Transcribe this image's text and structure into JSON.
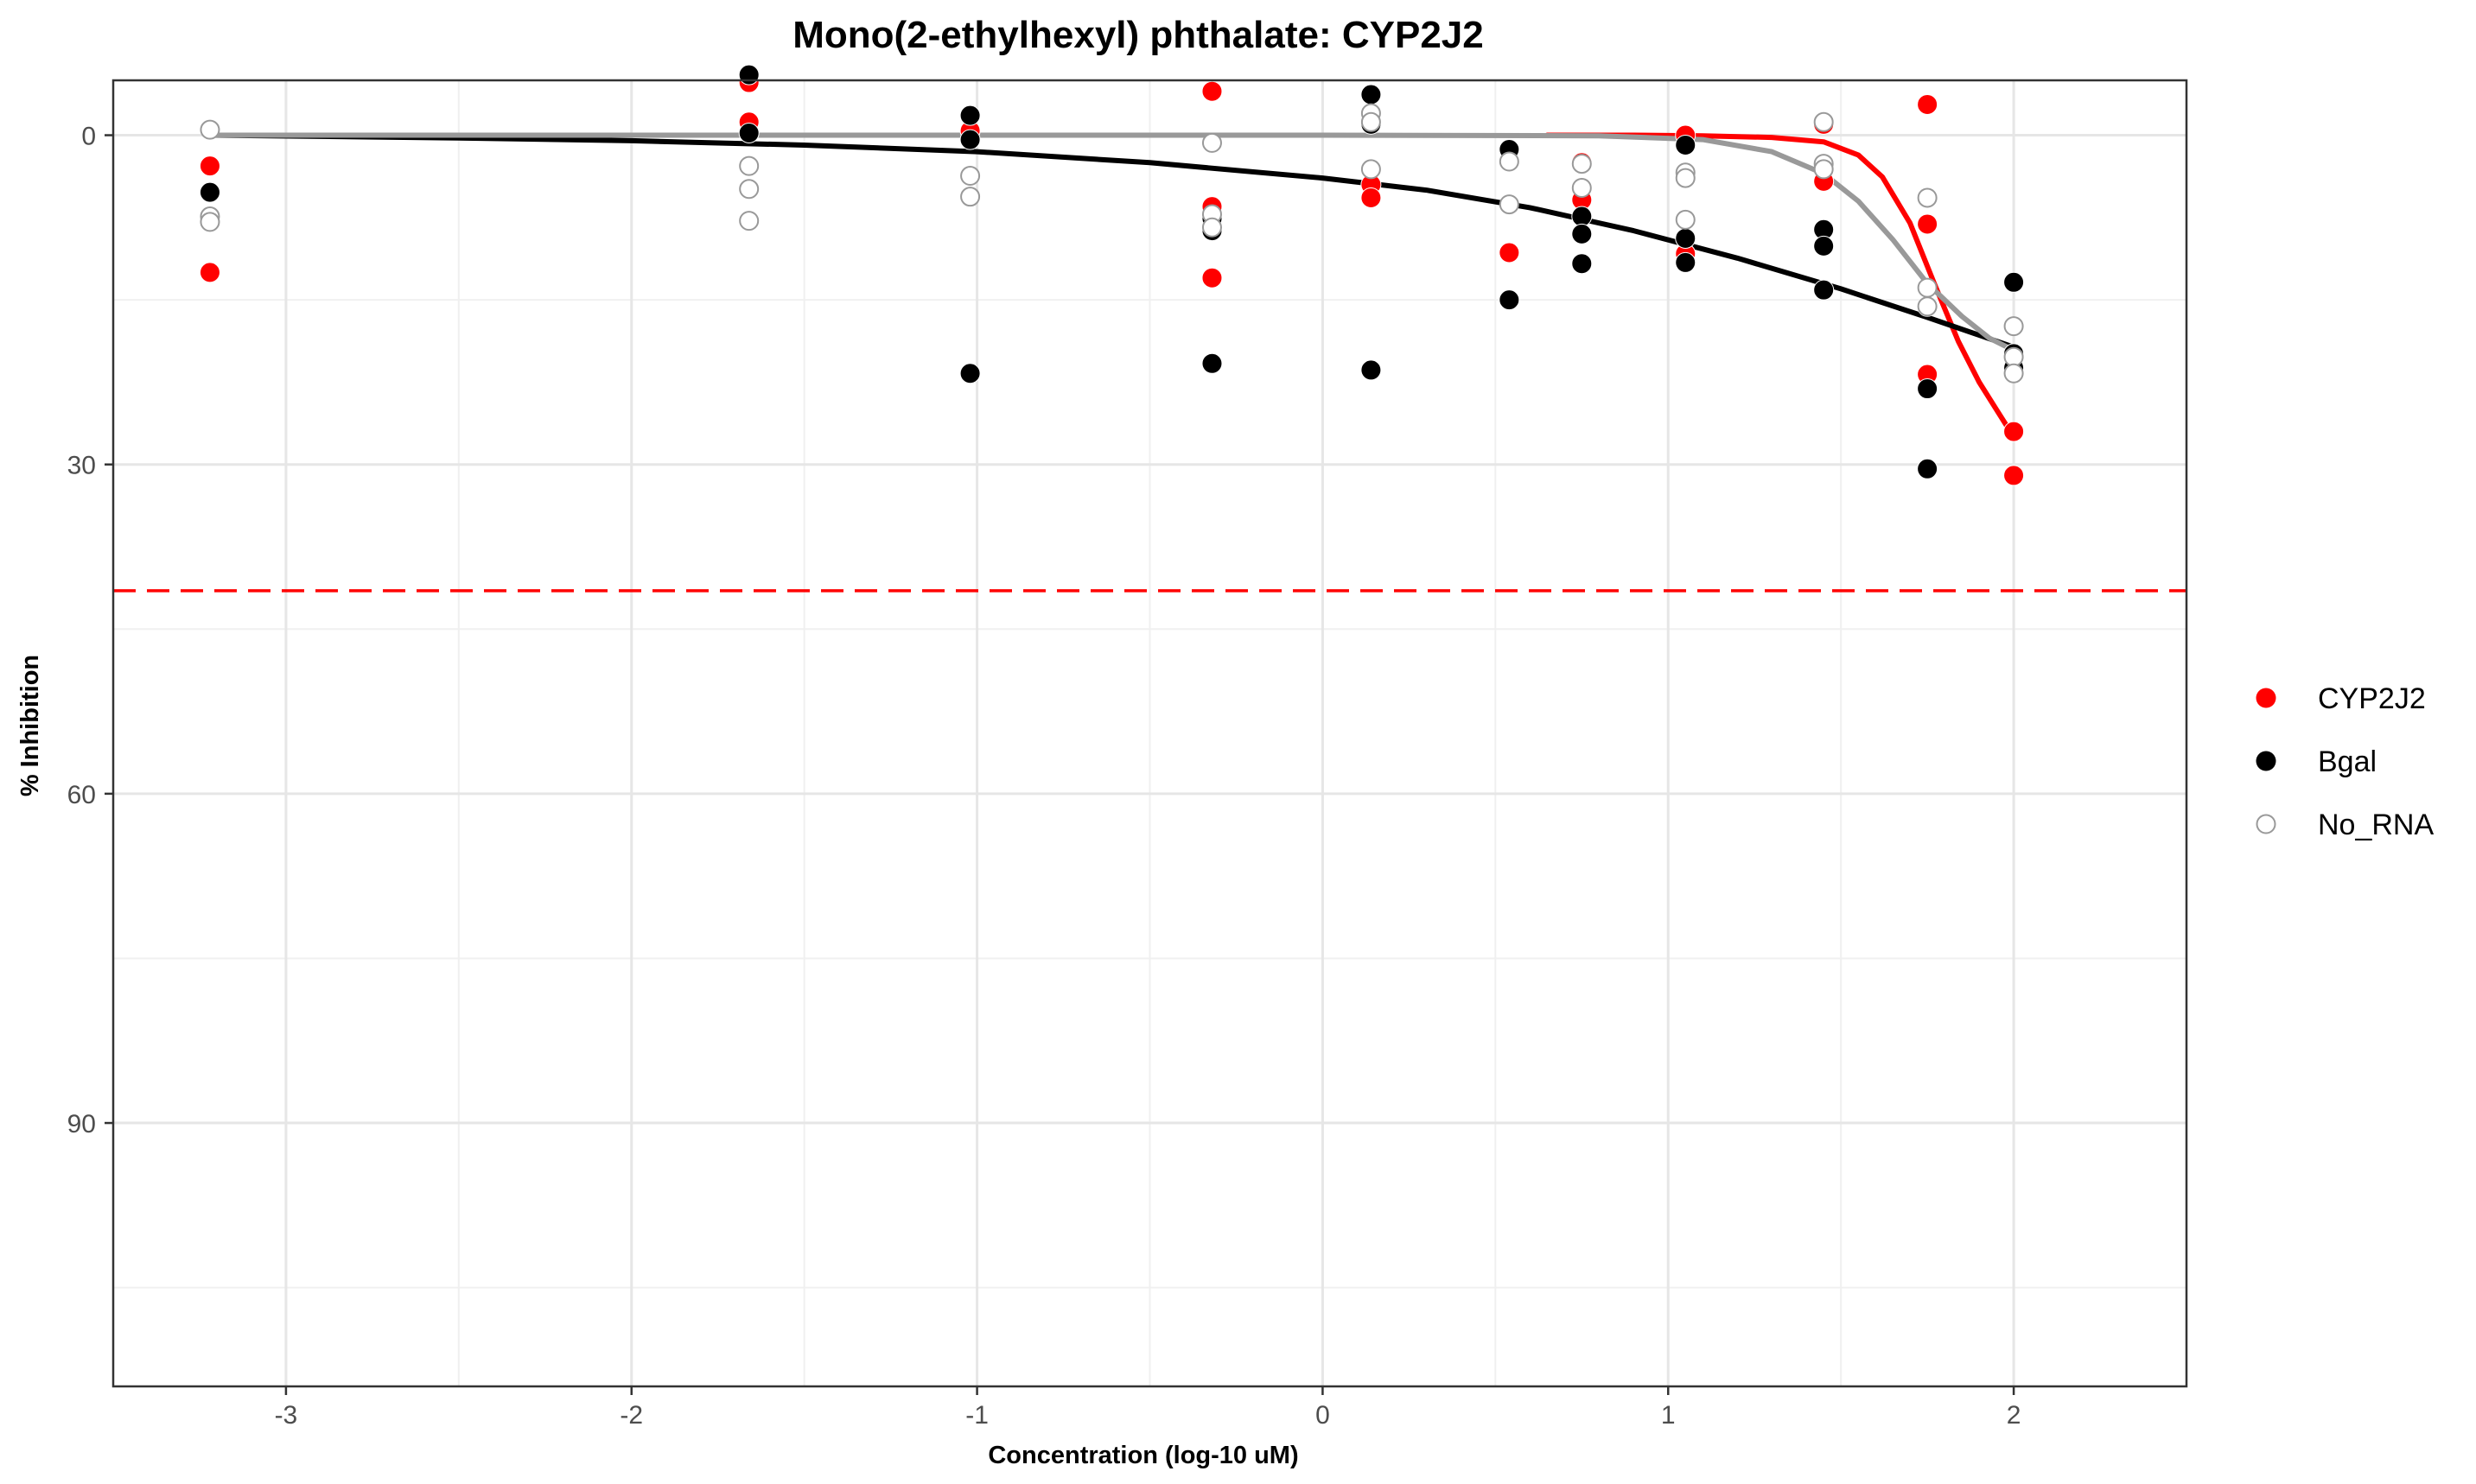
{
  "chart_data": {
    "type": "scatter",
    "title": "Mono(2-ethylhexyl) phthalate: CYP2J2",
    "xlabel": "Concentration (log-10 uM)",
    "ylabel": "% Inhibition",
    "xlim": [
      -3.5,
      2.5
    ],
    "ylim": [
      -5,
      114
    ],
    "y_reversed": true,
    "x_ticks": [
      -3,
      -2,
      -1,
      0,
      1,
      2
    ],
    "y_ticks": [
      0,
      30,
      60,
      90
    ],
    "grid": true,
    "legend_position": "right",
    "reference_line": {
      "y": 41.5,
      "color": "#ff0000",
      "style": "dashed"
    },
    "series": [
      {
        "name": "CYP2J2",
        "color": "#ff0000",
        "marker": "filled-circle",
        "points": [
          [
            -3.22,
            2.8
          ],
          [
            -3.22,
            12.5
          ],
          [
            -1.66,
            -4.8
          ],
          [
            -1.66,
            -1.2
          ],
          [
            -1.02,
            -0.4
          ],
          [
            -0.32,
            -4.0
          ],
          [
            -0.32,
            6.5
          ],
          [
            -0.32,
            13.0
          ],
          [
            0.14,
            4.5
          ],
          [
            0.14,
            5.7
          ],
          [
            0.54,
            10.7
          ],
          [
            0.75,
            2.5
          ],
          [
            0.75,
            5.9
          ],
          [
            1.05,
            0.0
          ],
          [
            1.05,
            10.8
          ],
          [
            1.45,
            -1.0
          ],
          [
            1.45,
            4.2
          ],
          [
            1.75,
            -2.8
          ],
          [
            1.75,
            8.1
          ],
          [
            1.75,
            21.8
          ],
          [
            2.0,
            27.0
          ],
          [
            2.0,
            31.0
          ]
        ],
        "fit": [
          [
            0.65,
            0.0
          ],
          [
            0.9,
            0.0
          ],
          [
            1.1,
            0.05
          ],
          [
            1.3,
            0.2
          ],
          [
            1.45,
            0.6
          ],
          [
            1.55,
            1.8
          ],
          [
            1.62,
            3.8
          ],
          [
            1.7,
            8.0
          ],
          [
            1.77,
            13.5
          ],
          [
            1.84,
            18.8
          ],
          [
            1.9,
            22.5
          ],
          [
            1.95,
            25.0
          ],
          [
            2.0,
            27.5
          ]
        ]
      },
      {
        "name": "Bgal",
        "color": "#000000",
        "marker": "filled-circle",
        "points": [
          [
            -3.22,
            5.2
          ],
          [
            -1.66,
            -0.2
          ],
          [
            -1.66,
            -5.5
          ],
          [
            -1.02,
            -1.8
          ],
          [
            -1.02,
            0.4
          ],
          [
            -1.02,
            21.7
          ],
          [
            -0.32,
            7.6
          ],
          [
            -0.32,
            8.7
          ],
          [
            -0.32,
            20.8
          ],
          [
            0.14,
            -3.7
          ],
          [
            0.14,
            -1.0
          ],
          [
            0.14,
            21.4
          ],
          [
            0.54,
            1.3
          ],
          [
            0.54,
            15.0
          ],
          [
            0.75,
            7.4
          ],
          [
            0.75,
            9.0
          ],
          [
            0.75,
            11.7
          ],
          [
            1.05,
            0.9
          ],
          [
            1.05,
            9.4
          ],
          [
            1.05,
            11.6
          ],
          [
            1.45,
            8.6
          ],
          [
            1.45,
            10.1
          ],
          [
            1.45,
            14.1
          ],
          [
            1.75,
            15.6
          ],
          [
            1.75,
            23.1
          ],
          [
            1.75,
            30.4
          ],
          [
            2.0,
            13.4
          ],
          [
            2.0,
            19.9
          ],
          [
            2.0,
            21.2
          ]
        ],
        "fit": [
          [
            -3.22,
            0.0
          ],
          [
            -2.5,
            0.25
          ],
          [
            -2.0,
            0.5
          ],
          [
            -1.5,
            0.9
          ],
          [
            -1.0,
            1.5
          ],
          [
            -0.5,
            2.5
          ],
          [
            0.0,
            3.9
          ],
          [
            0.3,
            5.0
          ],
          [
            0.6,
            6.6
          ],
          [
            0.9,
            8.7
          ],
          [
            1.2,
            11.2
          ],
          [
            1.5,
            14.0
          ],
          [
            1.75,
            16.6
          ],
          [
            2.0,
            19.3
          ]
        ]
      },
      {
        "name": "No_RNA",
        "color": "#999999",
        "marker": "open-circle",
        "points": [
          [
            -3.22,
            -0.5
          ],
          [
            -3.22,
            7.4
          ],
          [
            -3.22,
            7.9
          ],
          [
            -1.66,
            2.8
          ],
          [
            -1.66,
            4.9
          ],
          [
            -1.66,
            7.8
          ],
          [
            -1.02,
            3.7
          ],
          [
            -1.02,
            5.6
          ],
          [
            -0.32,
            0.7
          ],
          [
            -0.32,
            7.2
          ],
          [
            -0.32,
            8.4
          ],
          [
            0.14,
            -2.0
          ],
          [
            0.14,
            -1.2
          ],
          [
            0.14,
            3.1
          ],
          [
            0.54,
            2.4
          ],
          [
            0.54,
            6.3
          ],
          [
            0.75,
            2.6
          ],
          [
            0.75,
            4.8
          ],
          [
            1.05,
            3.4
          ],
          [
            1.05,
            3.9
          ],
          [
            1.05,
            7.7
          ],
          [
            1.45,
            -1.2
          ],
          [
            1.45,
            2.6
          ],
          [
            1.45,
            3.1
          ],
          [
            1.75,
            5.7
          ],
          [
            1.75,
            13.9
          ],
          [
            1.75,
            15.6
          ],
          [
            2.0,
            17.4
          ],
          [
            2.0,
            20.2
          ],
          [
            2.0,
            21.7
          ]
        ],
        "fit": [
          [
            -3.22,
            0.0
          ],
          [
            0.0,
            0.0
          ],
          [
            0.8,
            0.05
          ],
          [
            1.1,
            0.4
          ],
          [
            1.3,
            1.5
          ],
          [
            1.45,
            3.5
          ],
          [
            1.55,
            6.0
          ],
          [
            1.65,
            9.5
          ],
          [
            1.75,
            13.5
          ],
          [
            1.85,
            16.5
          ],
          [
            1.93,
            18.5
          ],
          [
            2.0,
            19.6
          ]
        ]
      }
    ]
  }
}
